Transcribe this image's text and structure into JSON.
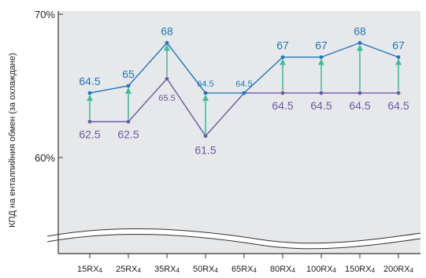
{
  "chart_data": {
    "type": "line",
    "ylabel": "КПД на енталпийния обмен (за охлаждане)",
    "y_ticks": [
      "70%",
      "60%"
    ],
    "ylim": [
      55,
      70.5
    ],
    "grid": false,
    "categories": [
      "15RX4",
      "25RX4",
      "35RX4",
      "50RX4",
      "65RX4",
      "80RX4",
      "100RX4",
      "150RX4",
      "200RX4"
    ],
    "category_labels": [
      {
        "main": "15RX",
        "sub": "4"
      },
      {
        "main": "25RX",
        "sub": "4"
      },
      {
        "main": "35RX",
        "sub": "4"
      },
      {
        "main": "50RX",
        "sub": "4"
      },
      {
        "main": "65RX",
        "sub": "4"
      },
      {
        "main": "80RX",
        "sub": "4"
      },
      {
        "main": "100RX",
        "sub": "4"
      },
      {
        "main": "150RX",
        "sub": "4"
      },
      {
        "main": "200RX",
        "sub": "4"
      }
    ],
    "series": [
      {
        "values": [
          64.5,
          65,
          68,
          64.5,
          64.5,
          67,
          67,
          68,
          67
        ],
        "color": "#1f78c1"
      },
      {
        "values": [
          62.5,
          62.5,
          65.5,
          61.5,
          64.5,
          64.5,
          64.5,
          64.5,
          64.5
        ],
        "color": "#6a5aa8"
      }
    ],
    "data_labels": [
      {
        "series": 0,
        "index": 0,
        "text": "64.5",
        "size": "big"
      },
      {
        "series": 0,
        "index": 1,
        "text": "65",
        "size": "big"
      },
      {
        "series": 0,
        "index": 2,
        "text": "68",
        "size": "big"
      },
      {
        "series": 0,
        "index": 3,
        "text": "64.5",
        "size": "small"
      },
      {
        "series": 0,
        "index": 4,
        "text": "64.5",
        "size": "small"
      },
      {
        "series": 0,
        "index": 5,
        "text": "67",
        "size": "big"
      },
      {
        "series": 0,
        "index": 6,
        "text": "67",
        "size": "big"
      },
      {
        "series": 0,
        "index": 7,
        "text": "68",
        "size": "big"
      },
      {
        "series": 0,
        "index": 8,
        "text": "67",
        "size": "big"
      },
      {
        "series": 1,
        "index": 0,
        "text": "62.5",
        "size": "big"
      },
      {
        "series": 1,
        "index": 1,
        "text": "62.5",
        "size": "big"
      },
      {
        "series": 1,
        "index": 2,
        "text": "65.5",
        "size": "small"
      },
      {
        "series": 1,
        "index": 3,
        "text": "61.5",
        "size": "big"
      },
      {
        "series": 1,
        "index": 5,
        "text": "64.5",
        "size": "big"
      },
      {
        "series": 1,
        "index": 6,
        "text": "64.5",
        "size": "big"
      },
      {
        "series": 1,
        "index": 7,
        "text": "64.5",
        "size": "big"
      },
      {
        "series": 1,
        "index": 8,
        "text": "64.5",
        "size": "big"
      }
    ],
    "arrow_indices": [
      0,
      1,
      2,
      3,
      5,
      6,
      7,
      8
    ],
    "colors": {
      "plot_background": "#e7e8ea",
      "axis": "#333333",
      "arrow": "#3dbf9a",
      "break_line": "#333333"
    }
  }
}
